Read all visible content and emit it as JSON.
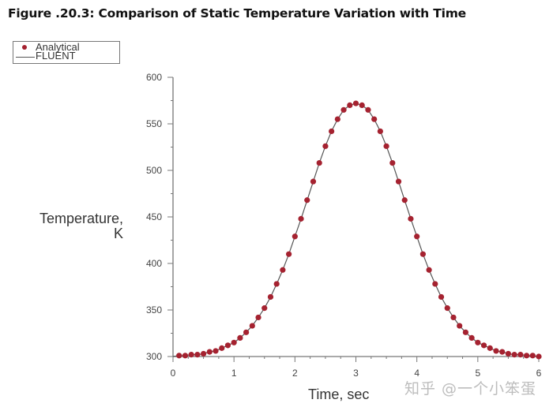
{
  "figure": {
    "title": "Figure .20.3: Comparison of Static Temperature Variation with Time"
  },
  "legend": {
    "items": [
      {
        "label": "Analytical",
        "marker": "dot",
        "color": "#a52230"
      },
      {
        "label": "FLUENT",
        "marker": "line",
        "color": "#555555"
      }
    ]
  },
  "axes": {
    "ylabel_line1": "Temperature,",
    "ylabel_line2": "K",
    "xlabel": "Time, sec"
  },
  "watermark": "知乎 @一个小笨蛋",
  "colors": {
    "marker": "#a52230",
    "line": "#555555",
    "axis": "#777777"
  },
  "chart_data": {
    "type": "line",
    "title": "Figure .20.3: Comparison of Static Temperature Variation with Time",
    "xlabel": "Time, sec",
    "ylabel": "Temperature, K",
    "xlim": [
      0,
      6
    ],
    "ylim": [
      300,
      600
    ],
    "xticks": [
      0,
      1,
      2,
      3,
      4,
      5,
      6
    ],
    "yticks": [
      300,
      350,
      400,
      450,
      500,
      550,
      600
    ],
    "grid": false,
    "legend_position": "top-left",
    "x": [
      0.1,
      0.2,
      0.3,
      0.4,
      0.5,
      0.6,
      0.7,
      0.8,
      0.9,
      1.0,
      1.1,
      1.2,
      1.3,
      1.4,
      1.5,
      1.6,
      1.7,
      1.8,
      1.9,
      2.0,
      2.1,
      2.2,
      2.3,
      2.4,
      2.5,
      2.6,
      2.7,
      2.8,
      2.9,
      3.0,
      3.1,
      3.2,
      3.3,
      3.4,
      3.5,
      3.6,
      3.7,
      3.8,
      3.9,
      4.0,
      4.1,
      4.2,
      4.3,
      4.4,
      4.5,
      4.6,
      4.7,
      4.8,
      4.9,
      5.0,
      5.1,
      5.2,
      5.3,
      5.4,
      5.5,
      5.6,
      5.7,
      5.8,
      5.9,
      6.0
    ],
    "series": [
      {
        "name": "Analytical",
        "style": "markers",
        "values": [
          301,
          301,
          302,
          302,
          303,
          305,
          306,
          309,
          312,
          315,
          320,
          326,
          333,
          342,
          352,
          364,
          378,
          393,
          410,
          429,
          448,
          468,
          488,
          508,
          526,
          542,
          555,
          565,
          570,
          572,
          570,
          565,
          555,
          542,
          526,
          508,
          488,
          468,
          448,
          429,
          410,
          393,
          378,
          364,
          352,
          342,
          333,
          326,
          320,
          315,
          312,
          309,
          306,
          305,
          303,
          302,
          302,
          301,
          301,
          300
        ]
      },
      {
        "name": "FLUENT",
        "style": "line",
        "values": [
          301,
          301,
          302,
          302,
          303,
          305,
          306,
          309,
          312,
          315,
          320,
          326,
          333,
          342,
          352,
          364,
          378,
          393,
          410,
          429,
          448,
          468,
          488,
          508,
          526,
          542,
          555,
          565,
          570,
          572,
          570,
          565,
          555,
          542,
          526,
          508,
          488,
          468,
          448,
          429,
          410,
          393,
          378,
          364,
          352,
          342,
          333,
          326,
          320,
          315,
          312,
          309,
          306,
          305,
          303,
          302,
          302,
          301,
          301,
          300
        ]
      }
    ]
  }
}
